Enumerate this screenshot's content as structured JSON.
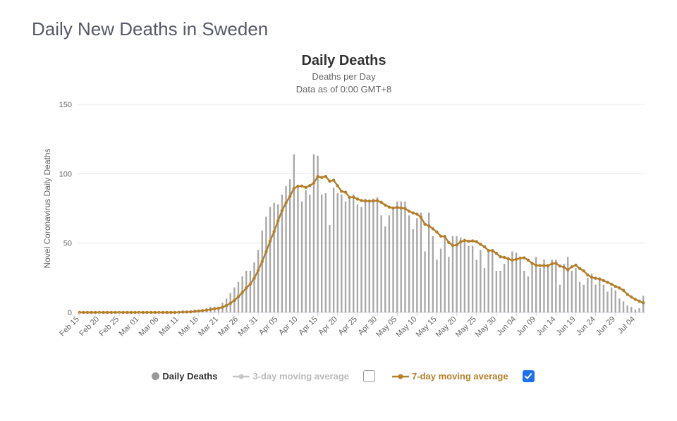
{
  "page_title": "Daily New Deaths in Sweden",
  "chart": {
    "type": "bar+line",
    "title": "Daily Deaths",
    "subtitle_line1": "Deaths per Day",
    "subtitle_line2": "Data as of 0:00 GMT+8",
    "y_axis_label": "Novel Coronavirus Daily Deaths",
    "ylim": [
      0,
      150
    ],
    "ytick_step": 50,
    "yticks": [
      0,
      50,
      100,
      150
    ],
    "background_color": "#ffffff",
    "grid_color": "#e8e8e8",
    "axis_line_color": "#cfd3d8",
    "tick_label_color": "#666666",
    "tick_fontsize": 11,
    "title_fontsize": 20,
    "subtitle_fontsize": 13,
    "xlabel_rotation": -45,
    "bar": {
      "color": "#999999",
      "opacity": 0.85,
      "width_ratio": 0.42
    },
    "line_7day": {
      "color": "#b37f2a",
      "width": 2.4,
      "marker": "circle",
      "marker_size": 2.2
    },
    "line_3day": {
      "color": "#c6c6c6",
      "width": 2,
      "visible": false
    },
    "x_major_labels": [
      "Feb 15",
      "Feb 20",
      "Feb 25",
      "Mar 01",
      "Mar 06",
      "Mar 11",
      "Mar 16",
      "Mar 21",
      "Mar 26",
      "Mar 31",
      "Apr 05",
      "Apr 10",
      "Apr 15",
      "Apr 20",
      "Apr 25",
      "Apr 30",
      "May 05",
      "May 10",
      "May 15",
      "May 20",
      "May 25",
      "May 30",
      "Jun 04",
      "Jun 09",
      "Jun 14",
      "Jun 19",
      "Jun 24",
      "Jun 29",
      "Jul 04"
    ],
    "x_major_step_days": 5,
    "dates": [
      "Feb 15",
      "Feb 16",
      "Feb 17",
      "Feb 18",
      "Feb 19",
      "Feb 20",
      "Feb 21",
      "Feb 22",
      "Feb 23",
      "Feb 24",
      "Feb 25",
      "Feb 26",
      "Feb 27",
      "Feb 28",
      "Feb 29",
      "Mar 01",
      "Mar 02",
      "Mar 03",
      "Mar 04",
      "Mar 05",
      "Mar 06",
      "Mar 07",
      "Mar 08",
      "Mar 09",
      "Mar 10",
      "Mar 11",
      "Mar 12",
      "Mar 13",
      "Mar 14",
      "Mar 15",
      "Mar 16",
      "Mar 17",
      "Mar 18",
      "Mar 19",
      "Mar 20",
      "Mar 21",
      "Mar 22",
      "Mar 23",
      "Mar 24",
      "Mar 25",
      "Mar 26",
      "Mar 27",
      "Mar 28",
      "Mar 29",
      "Mar 30",
      "Mar 31",
      "Apr 01",
      "Apr 02",
      "Apr 03",
      "Apr 04",
      "Apr 05",
      "Apr 06",
      "Apr 07",
      "Apr 08",
      "Apr 09",
      "Apr 10",
      "Apr 11",
      "Apr 12",
      "Apr 13",
      "Apr 14",
      "Apr 15",
      "Apr 16",
      "Apr 17",
      "Apr 18",
      "Apr 19",
      "Apr 20",
      "Apr 21",
      "Apr 22",
      "Apr 23",
      "Apr 24",
      "Apr 25",
      "Apr 26",
      "Apr 27",
      "Apr 28",
      "Apr 29",
      "Apr 30",
      "May 01",
      "May 02",
      "May 03",
      "May 04",
      "May 05",
      "May 06",
      "May 07",
      "May 08",
      "May 09",
      "May 10",
      "May 11",
      "May 12",
      "May 13",
      "May 14",
      "May 15",
      "May 16",
      "May 17",
      "May 18",
      "May 19",
      "May 20",
      "May 21",
      "May 22",
      "May 23",
      "May 24",
      "May 25",
      "May 26",
      "May 27",
      "May 28",
      "May 29",
      "May 30",
      "May 31",
      "Jun 01",
      "Jun 02",
      "Jun 03",
      "Jun 04",
      "Jun 05",
      "Jun 06",
      "Jun 07",
      "Jun 08",
      "Jun 09",
      "Jun 10",
      "Jun 11",
      "Jun 12",
      "Jun 13",
      "Jun 14",
      "Jun 15",
      "Jun 16",
      "Jun 17",
      "Jun 18",
      "Jun 19",
      "Jun 20",
      "Jun 21",
      "Jun 22",
      "Jun 23",
      "Jun 24",
      "Jun 25",
      "Jun 26",
      "Jun 27",
      "Jun 28",
      "Jun 29",
      "Jun 30",
      "Jul 01",
      "Jul 02",
      "Jul 03",
      "Jul 04",
      "Jul 05",
      "Jul 06"
    ],
    "values": [
      0,
      0,
      0,
      0,
      0,
      0,
      0,
      0,
      0,
      0,
      0,
      0,
      0,
      0,
      0,
      0,
      0,
      0,
      0,
      0,
      0,
      0,
      0,
      0,
      0,
      1,
      1,
      0,
      1,
      2,
      2,
      2,
      3,
      4,
      4,
      4,
      7,
      10,
      14,
      18,
      22,
      26,
      30,
      30,
      36,
      45,
      59,
      69,
      76,
      79,
      78,
      85,
      91,
      96,
      114,
      90,
      80,
      88,
      85,
      114,
      113,
      85,
      86,
      63,
      90,
      86,
      85,
      80,
      82,
      85,
      78,
      76,
      82,
      80,
      82,
      83,
      70,
      62,
      70,
      76,
      80,
      80,
      80,
      70,
      60,
      68,
      72,
      44,
      72,
      55,
      38,
      46,
      56,
      40,
      55,
      55,
      54,
      53,
      48,
      48,
      38,
      45,
      32,
      44,
      44,
      30,
      30,
      35,
      40,
      44,
      43,
      38,
      30,
      26,
      36,
      40,
      32,
      38,
      34,
      38,
      38,
      20,
      35,
      40,
      30,
      32,
      22,
      20,
      25,
      28,
      20,
      24,
      20,
      15,
      18,
      16,
      10,
      8,
      5,
      4,
      2,
      3,
      12
    ],
    "ma7": [
      0,
      0,
      0,
      0,
      0,
      0,
      0,
      0,
      0,
      0,
      0,
      0,
      0,
      0,
      0,
      0,
      0,
      0,
      0,
      0,
      0,
      0,
      0,
      0,
      0,
      0.1,
      0.3,
      0.3,
      0.4,
      0.7,
      1.0,
      1.3,
      1.6,
      2.1,
      2.6,
      3.0,
      3.7,
      5.0,
      6.6,
      8.7,
      11.3,
      14.3,
      17.6,
      20.4,
      24.6,
      30.3,
      36.7,
      43.7,
      51.4,
      58.3,
      66.0,
      73.4,
      79.0,
      83.7,
      89.4,
      91.0,
      91.1,
      90.1,
      91.4,
      93.3,
      98.0,
      97.3,
      98.1,
      94.6,
      95.3,
      91.3,
      87.3,
      86.6,
      83.0,
      83.1,
      81.7,
      80.7,
      80.3,
      80.3,
      80.3,
      80.6,
      79.4,
      77.4,
      75.9,
      75.3,
      75.7,
      75.3,
      74.9,
      73.0,
      71.7,
      70.9,
      68.6,
      63.6,
      62.4,
      60.3,
      57.9,
      55.0,
      54.7,
      50.4,
      48.3,
      48.6,
      50.9,
      51.9,
      51.3,
      51.6,
      51.0,
      49.1,
      47.3,
      44.6,
      44.6,
      42.6,
      40.1,
      39.7,
      38.6,
      37.7,
      38.3,
      39.1,
      39.4,
      37.7,
      35.4,
      34.0,
      33.7,
      33.7,
      33.7,
      35.1,
      35.4,
      33.4,
      32.6,
      30.7,
      32.9,
      34.1,
      31.6,
      29.9,
      27.0,
      25.3,
      24.6,
      24.1,
      22.9,
      21.7,
      20.3,
      18.7,
      17.6,
      15.9,
      13.0,
      11.1,
      9.4,
      8.1,
      6.9,
      6.3
    ]
  },
  "legend": {
    "series_bar": "Daily Deaths",
    "series_3day": "3-day moving average",
    "series_7day": "7-day moving average",
    "checkbox_3day_checked": false,
    "checkbox_7day_checked": true
  }
}
